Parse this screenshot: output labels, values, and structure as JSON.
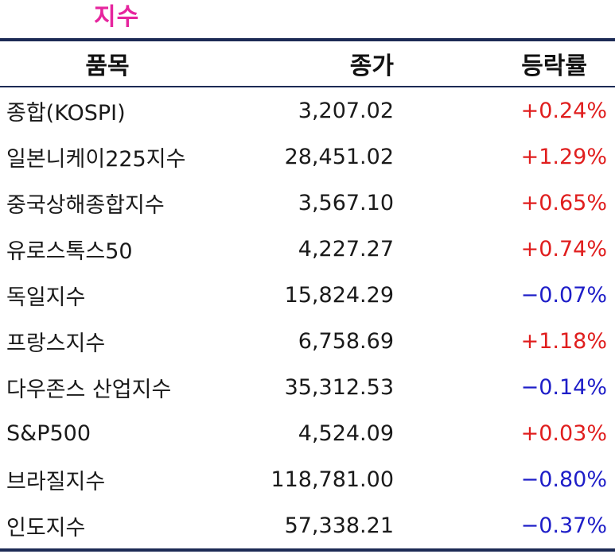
{
  "title": "지수",
  "colors": {
    "title": "#e6259e",
    "positive": "#e01e1e",
    "negative": "#1e1ec8",
    "rule": "#1c2a55"
  },
  "header": {
    "name": "품목",
    "close": "종가",
    "change": "등락률"
  },
  "rows": [
    {
      "name": "종합(KOSPI)",
      "close": "3,207.02",
      "change": "+0.24%",
      "direction": "up"
    },
    {
      "name": "일본니케이225지수",
      "close": "28,451.02",
      "change": "+1.29%",
      "direction": "up"
    },
    {
      "name": "중국상해종합지수",
      "close": "3,567.10",
      "change": "+0.65%",
      "direction": "up"
    },
    {
      "name": "유로스톡스50",
      "close": "4,227.27",
      "change": "+0.74%",
      "direction": "up"
    },
    {
      "name": "독일지수",
      "close": "15,824.29",
      "change": "−0.07%",
      "direction": "down"
    },
    {
      "name": "프랑스지수",
      "close": "6,758.69",
      "change": "+1.18%",
      "direction": "up"
    },
    {
      "name": "다우존스 산업지수",
      "close": "35,312.53",
      "change": "−0.14%",
      "direction": "down"
    },
    {
      "name": "S&P500",
      "close": "4,524.09",
      "change": "+0.03%",
      "direction": "up"
    },
    {
      "name": "브라질지수",
      "close": "118,781.00",
      "change": "−0.80%",
      "direction": "down"
    },
    {
      "name": "인도지수",
      "close": "57,338.21",
      "change": "−0.37%",
      "direction": "down"
    }
  ]
}
